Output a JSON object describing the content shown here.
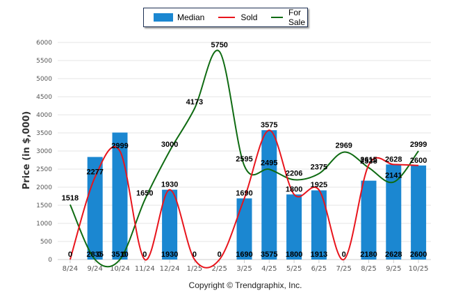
{
  "chart_data": {
    "type": "bar",
    "title": "",
    "xlabel": "",
    "ylabel": "Price (in $,000)",
    "ylim": [
      0,
      6000
    ],
    "yticks": [
      0,
      500,
      1000,
      1500,
      2000,
      2500,
      3000,
      3500,
      4000,
      4500,
      5000,
      5500,
      6000
    ],
    "grid": true,
    "legend_position": "top-center",
    "categories": [
      "8/24",
      "9/24",
      "10/24",
      "11/24",
      "12/24",
      "1/25",
      "2/25",
      "3/25",
      "4/25",
      "5/25",
      "6/25",
      "7/25",
      "8/25",
      "9/25",
      "10/25"
    ],
    "series": [
      {
        "name": "Median",
        "type": "bar",
        "color": "#1b87d1",
        "values": [
          0,
          2835,
          3510,
          0,
          1930,
          0,
          0,
          1690,
          3575,
          1800,
          1913,
          0,
          2180,
          2628,
          2600
        ]
      },
      {
        "name": "Sold",
        "type": "line",
        "color": "#e8141c",
        "values": [
          0,
          2277,
          2999,
          0,
          1930,
          0,
          0,
          1690,
          3575,
          1800,
          1925,
          0,
          2615,
          2628,
          2600
        ]
      },
      {
        "name": "For Sale",
        "type": "line",
        "color": "#0f6b12",
        "values": [
          1518,
          0,
          0,
          1650,
          3000,
          4173,
          5750,
          2595,
          2495,
          2206,
          2375,
          2969,
          2538,
          2141,
          2999
        ]
      }
    ]
  },
  "legend": {
    "items": [
      {
        "label": "Median",
        "color": "#1b87d1",
        "kind": "bar"
      },
      {
        "label": "Sold",
        "color": "#e8141c",
        "kind": "line"
      },
      {
        "label": "For Sale",
        "color": "#0f6b12",
        "kind": "line"
      }
    ]
  },
  "footer": {
    "copyright": "Copyright © Trendgraphix, Inc."
  }
}
